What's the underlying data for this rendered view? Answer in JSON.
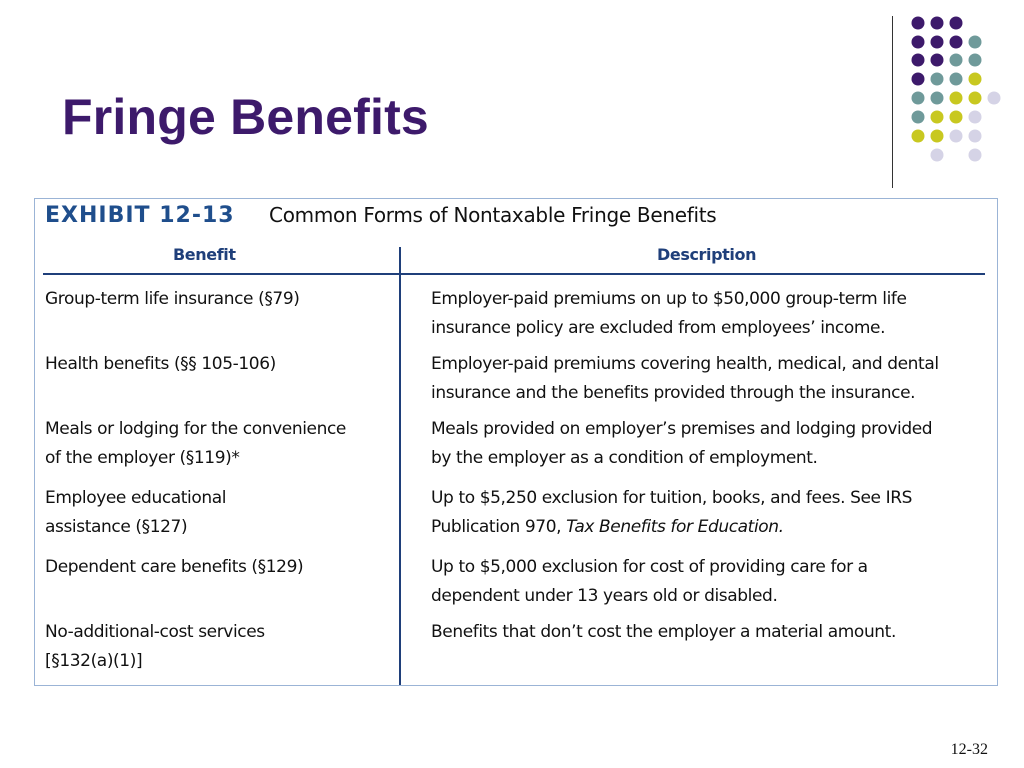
{
  "slide": {
    "title": "Fringe Benefits",
    "page_number": "12-32"
  },
  "colors": {
    "title": "#3d1a6b",
    "exhibit_accent": "#1f4e8c",
    "dot_purple": "#3d1a6b",
    "dot_teal": "#6f9a9a",
    "dot_yellow": "#c8c820",
    "dot_lavender": "#d5d3e6"
  },
  "decoration": {
    "dot_colors": [
      "dot_purple",
      "dot_teal",
      "dot_yellow",
      "dot_lavender"
    ]
  },
  "exhibit": {
    "number": "EXHIBIT 12-13",
    "title": "Common Forms of Nontaxable Fringe Benefits",
    "headers": {
      "benefit": "Benefit",
      "description": "Description"
    },
    "rows": [
      {
        "benefit": [
          "Group-term life insurance (§79)"
        ],
        "description": [
          "Employer-paid premiums on up to $50,000 group-term life",
          "insurance policy are excluded from employees’ income."
        ]
      },
      {
        "benefit": [
          "Health benefits (§§ 105-106)"
        ],
        "description": [
          "Employer-paid premiums covering health, medical, and dental",
          "insurance and the benefits provided through the insurance."
        ]
      },
      {
        "benefit": [
          "Meals or lodging for the convenience",
          "of the employer (§119)*"
        ],
        "description": [
          "Meals provided on employer’s premises and lodging provided",
          "by the employer as a condition of employment."
        ]
      },
      {
        "benefit": [
          "Employee educational",
          "assistance (§127)"
        ],
        "description": [
          "Up to $5,250 exclusion for tuition, books, and fees. See IRS",
          "Publication 970, "
        ],
        "description_italic": "Tax Benefits for Education."
      },
      {
        "benefit": [
          "Dependent care benefits (§129)"
        ],
        "description": [
          "Up to $5,000 exclusion for cost of providing care for a",
          "dependent under 13 years old or disabled."
        ]
      },
      {
        "benefit": [
          "No-additional-cost services",
          "[§132(a)(1)]"
        ],
        "description": [
          "Benefits that don’t cost the employer a material amount."
        ]
      }
    ]
  }
}
